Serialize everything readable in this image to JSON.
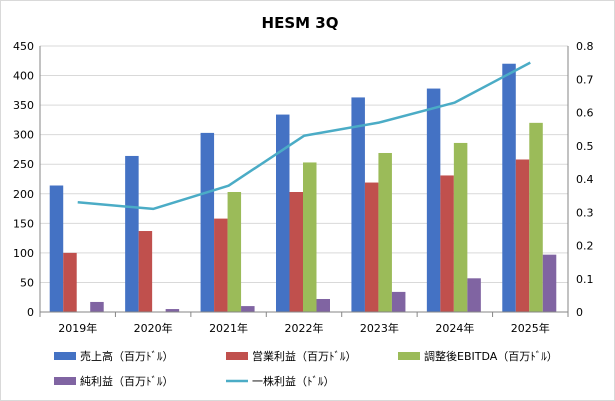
{
  "chart_data": {
    "type": "bar",
    "title": "HESM 3Q",
    "categories": [
      "2019年",
      "2020年",
      "2021年",
      "2022年",
      "2023年",
      "2024年",
      "2025年"
    ],
    "series": [
      {
        "name": "売上高（百万ﾄﾞﾙ）",
        "kind": "bar",
        "axis": "left",
        "color": "#4472C4",
        "values": [
          214,
          264,
          303,
          334,
          363,
          378,
          420
        ]
      },
      {
        "name": "営業利益（百万ﾄﾞﾙ）",
        "kind": "bar",
        "axis": "left",
        "color": "#C0504D",
        "values": [
          100,
          137,
          158,
          203,
          219,
          231,
          258
        ]
      },
      {
        "name": "調整後EBITDA（百万ﾄﾞﾙ）",
        "kind": "bar",
        "axis": "left",
        "color": "#9BBB59",
        "values": [
          null,
          null,
          203,
          253,
          269,
          286,
          320
        ]
      },
      {
        "name": "純利益（百万ﾄﾞﾙ）",
        "kind": "bar",
        "axis": "left",
        "color": "#8064A2",
        "values": [
          17,
          5,
          10,
          22,
          34,
          57,
          97
        ]
      },
      {
        "name": "一株利益（ﾄﾞﾙ）",
        "kind": "line",
        "axis": "right",
        "color": "#4BACC6",
        "values": [
          0.33,
          0.31,
          0.38,
          0.53,
          0.57,
          0.63,
          0.75
        ]
      }
    ],
    "y_left": {
      "min": 0,
      "max": 450,
      "ticks": [
        "0",
        "50",
        "100",
        "150",
        "200",
        "250",
        "300",
        "350",
        "400",
        "450"
      ]
    },
    "y_right": {
      "min": 0,
      "max": 0.8,
      "ticks": [
        "0",
        "0.1",
        "0.2",
        "0.3",
        "0.4",
        "0.5",
        "0.6",
        "0.7",
        "0.8"
      ]
    },
    "grid": true,
    "legend_position": "bottom"
  }
}
